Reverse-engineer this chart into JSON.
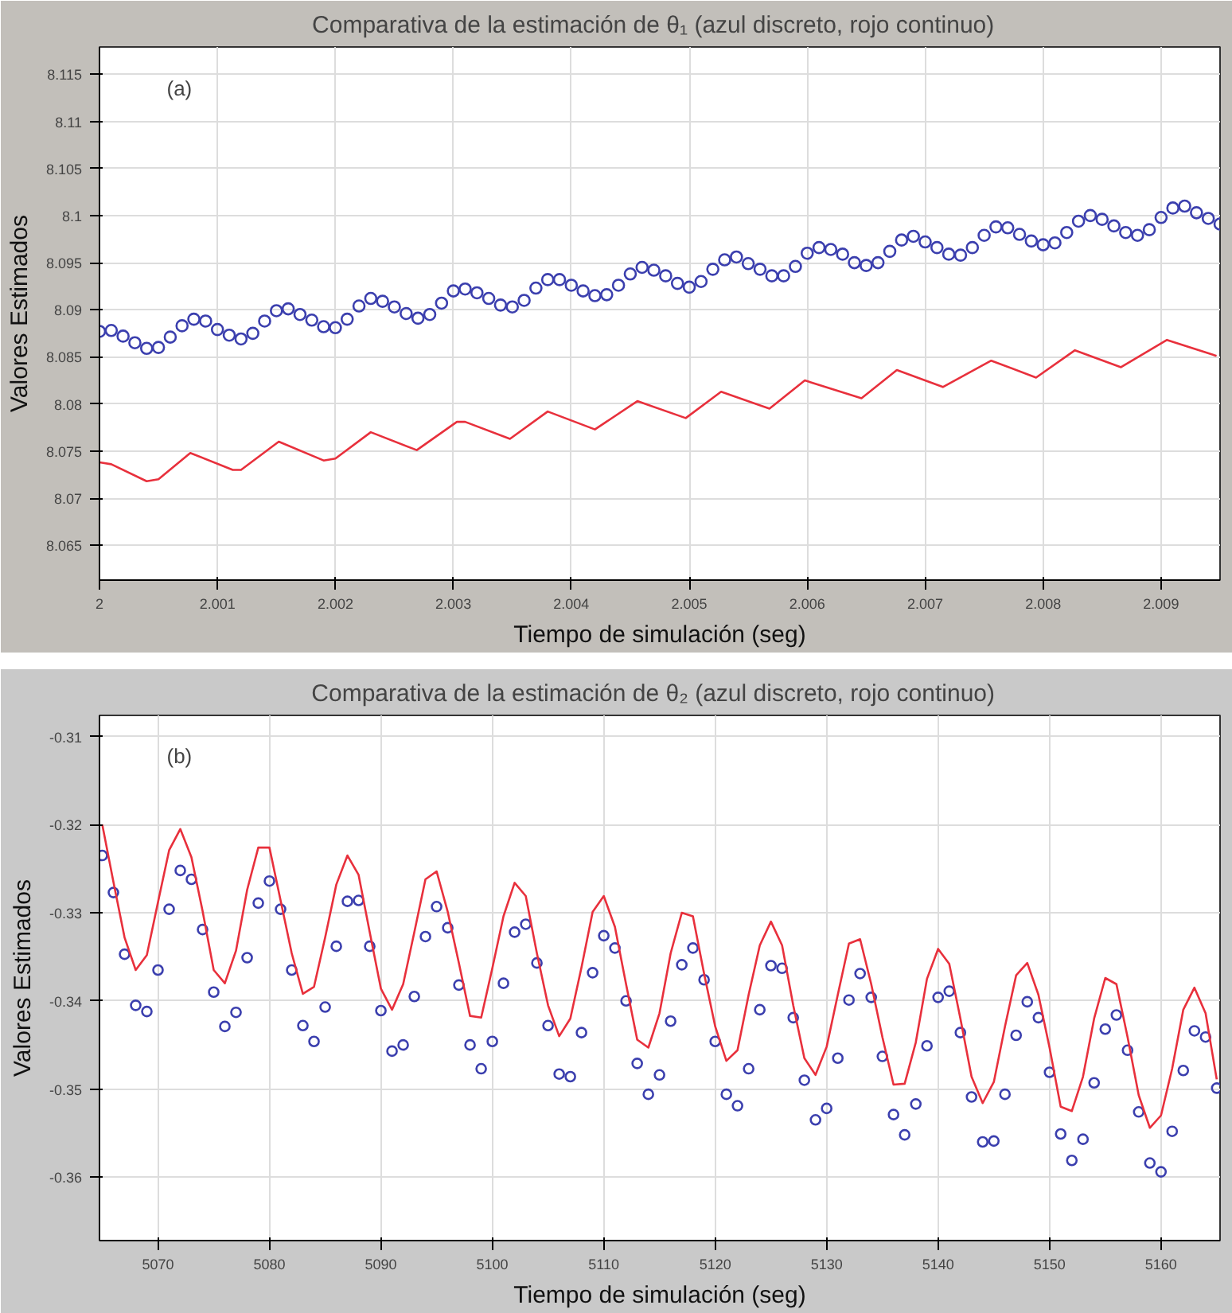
{
  "chart_data": [
    {
      "type": "scatter",
      "title": "Comparativa  de la estimación de  θ₁ (azul discreto, rojo continuo)",
      "xlabel": "Tiempo de simulación (seg)",
      "ylabel": "Valores Estimados",
      "annotations": [
        "(a)"
      ],
      "xlim": [
        2,
        2.0095
      ],
      "ylim": [
        8.0613,
        8.1179
      ],
      "xticks": [
        2,
        2.001,
        2.002,
        2.003,
        2.004,
        2.005,
        2.006,
        2.007,
        2.008,
        2.009
      ],
      "yticks": [
        8.065,
        8.07,
        8.075,
        8.08,
        8.085,
        8.09,
        8.095,
        8.1,
        8.105,
        8.11,
        8.115
      ],
      "grid": true,
      "series": [
        {
          "marker": "circle",
          "color": "#3b3fae",
          "x": [
            2.0,
            2.0001,
            2.0002,
            2.0003,
            2.0004,
            2.0005,
            2.0006,
            2.0007,
            2.0008,
            2.0009,
            2.001,
            2.0011,
            2.0012,
            2.0013,
            2.0014,
            2.0015,
            2.0016,
            2.0017,
            2.0018,
            2.0019,
            2.002,
            2.0021,
            2.0022,
            2.0023,
            2.0024,
            2.0025,
            2.0026,
            2.0027,
            2.0028,
            2.0029,
            2.003,
            2.0031,
            2.0032,
            2.0033,
            2.0034,
            2.0035,
            2.0036,
            2.0037,
            2.0038,
            2.0039,
            2.004,
            2.0041,
            2.0042,
            2.0043,
            2.0044,
            2.0045,
            2.0046,
            2.0047,
            2.0048,
            2.0049,
            2.005,
            2.0051,
            2.0052,
            2.0053,
            2.0054,
            2.0055,
            2.0056,
            2.0057,
            2.0058,
            2.0059,
            2.006,
            2.0061,
            2.0062,
            2.0063,
            2.0064,
            2.0065,
            2.0066,
            2.0067,
            2.0068,
            2.0069,
            2.007,
            2.0071,
            2.0072,
            2.0073,
            2.0074,
            2.0075,
            2.0076,
            2.0077,
            2.0078,
            2.0079,
            2.008,
            2.0081,
            2.0082,
            2.0083,
            2.0084,
            2.0085,
            2.0086,
            2.0087,
            2.0088,
            2.0089,
            2.009,
            2.0091,
            2.0092,
            2.0093,
            2.0094,
            2.0095
          ],
          "values": [
            8.0877,
            8.0878,
            8.0872,
            8.0865,
            8.0859,
            8.086,
            8.0871,
            8.0883,
            8.089,
            8.0888,
            8.0879,
            8.0873,
            8.0869,
            8.0875,
            8.0888,
            8.0899,
            8.0901,
            8.0895,
            8.0889,
            8.0882,
            8.0881,
            8.089,
            8.0904,
            8.0912,
            8.0909,
            8.0903,
            8.0896,
            8.0891,
            8.0895,
            8.0907,
            8.092,
            8.0922,
            8.0918,
            8.0912,
            8.0905,
            8.0903,
            8.091,
            8.0923,
            8.0932,
            8.0932,
            8.0926,
            8.092,
            8.0915,
            8.0916,
            8.0926,
            8.0938,
            8.0945,
            8.0942,
            8.0936,
            8.0928,
            8.0924,
            8.093,
            8.0943,
            8.0953,
            8.0956,
            8.0949,
            8.0943,
            8.0936,
            8.0936,
            8.0946,
            8.096,
            8.0966,
            8.0964,
            8.0959,
            8.095,
            8.0947,
            8.095,
            8.0962,
            8.0974,
            8.0978,
            8.0972,
            8.0966,
            8.0959,
            8.0958,
            8.0966,
            8.0979,
            8.0988,
            8.0987,
            8.098,
            8.0973,
            8.0969,
            8.0971,
            8.0982,
            8.0994,
            8.1,
            8.0996,
            8.0989,
            8.0982,
            8.0979,
            8.0985,
            8.0998,
            8.1008,
            8.101,
            8.1003,
            8.0997,
            8.0991
          ]
        },
        {
          "type": "line",
          "color": "#e8303c",
          "x": [
            2.0,
            2.0001,
            2.0004,
            2.0005,
            2.00077,
            2.00113,
            2.0012,
            2.00152,
            2.0019,
            2.002,
            2.0023,
            2.00269,
            2.00303,
            2.0031,
            2.00348,
            2.0038,
            2.0042,
            2.00456,
            2.00497,
            2.00527,
            2.00568,
            2.00598,
            2.00646,
            2.00676,
            2.00715,
            2.00756,
            2.00794,
            2.00827,
            2.00866,
            2.00905,
            2.00947
          ],
          "values": [
            8.0738,
            8.0736,
            8.0718,
            8.072,
            8.0748,
            8.073,
            8.073,
            8.076,
            8.074,
            8.0742,
            8.077,
            8.0751,
            8.0781,
            8.0781,
            8.0763,
            8.0792,
            8.0773,
            8.0803,
            8.0785,
            8.0813,
            8.0795,
            8.0825,
            8.0806,
            8.0836,
            8.0818,
            8.0846,
            8.0828,
            8.0857,
            8.0839,
            8.0868,
            8.0851
          ]
        }
      ]
    },
    {
      "type": "scatter",
      "title": "Comparativa  de la estimación de  θ₂ (azul discreto, rojo continuo)",
      "xlabel": "Tiempo de simulación (seg)",
      "ylabel": "Valores Estimados",
      "annotations": [
        "(b)"
      ],
      "xlim": [
        5064.75,
        5165.3
      ],
      "ylim": [
        -0.3672,
        -0.3076
      ],
      "xticks": [
        5070,
        5080,
        5090,
        5100,
        5110,
        5120,
        5130,
        5140,
        5150,
        5160
      ],
      "yticks": [
        -0.36,
        -0.35,
        -0.34,
        -0.33,
        -0.32,
        -0.31
      ],
      "grid": true,
      "series": [
        {
          "marker": "circle",
          "color": "#3b3fae",
          "x": [
            5065,
            5066,
            5067,
            5068,
            5069,
            5070,
            5071,
            5072,
            5073,
            5074,
            5075,
            5076,
            5077,
            5078,
            5079,
            5080,
            5081,
            5082,
            5083,
            5084,
            5085,
            5086,
            5087,
            5088,
            5089,
            5090,
            5091,
            5092,
            5093,
            5094,
            5095,
            5096,
            5097,
            5098,
            5099,
            5100,
            5101,
            5102,
            5103,
            5104,
            5105,
            5106,
            5107,
            5108,
            5109,
            5110,
            5111,
            5112,
            5113,
            5114,
            5115,
            5116,
            5117,
            5118,
            5119,
            5120,
            5121,
            5122,
            5123,
            5124,
            5125,
            5126,
            5127,
            5128,
            5129,
            5130,
            5131,
            5132,
            5133,
            5134,
            5135,
            5136,
            5137,
            5138,
            5139,
            5140,
            5141,
            5142,
            5143,
            5144,
            5145,
            5146,
            5147,
            5148,
            5149,
            5150,
            5151,
            5152,
            5153,
            5154,
            5155,
            5156,
            5157,
            5158,
            5159,
            5160,
            5161,
            5162,
            5163,
            5164,
            5165
          ],
          "values": [
            -0.3235,
            -0.3277,
            -0.3347,
            -0.3405,
            -0.3412,
            -0.3365,
            -0.3296,
            -0.3252,
            -0.3262,
            -0.3319,
            -0.339,
            -0.3429,
            -0.3413,
            -0.3351,
            -0.3289,
            -0.3264,
            -0.3296,
            -0.3365,
            -0.3428,
            -0.3446,
            -0.3407,
            -0.3338,
            -0.3287,
            -0.3286,
            -0.3338,
            -0.3411,
            -0.3457,
            -0.345,
            -0.3395,
            -0.3327,
            -0.3293,
            -0.3317,
            -0.3382,
            -0.345,
            -0.3477,
            -0.3446,
            -0.338,
            -0.3322,
            -0.3313,
            -0.3357,
            -0.3428,
            -0.3483,
            -0.3486,
            -0.3436,
            -0.3368,
            -0.3326,
            -0.334,
            -0.34,
            -0.3471,
            -0.3506,
            -0.3484,
            -0.3423,
            -0.3359,
            -0.334,
            -0.3376,
            -0.3446,
            -0.3506,
            -0.3519,
            -0.3477,
            -0.341,
            -0.336,
            -0.3363,
            -0.3419,
            -0.349,
            -0.3535,
            -0.3522,
            -0.3465,
            -0.3399,
            -0.3369,
            -0.3396,
            -0.3463,
            -0.3529,
            -0.3552,
            -0.3517,
            -0.3451,
            -0.3396,
            -0.3389,
            -0.3436,
            -0.3509,
            -0.356,
            -0.3559,
            -0.3506,
            -0.3439,
            -0.3401,
            -0.3419,
            -0.3481,
            -0.3551,
            -0.3581,
            -0.3557,
            -0.3493,
            -0.3432,
            -0.3416,
            -0.3456,
            -0.3526,
            -0.3584,
            -0.3594,
            -0.3548,
            -0.3479,
            -0.3434,
            -0.3441,
            -0.3499
          ]
        },
        {
          "type": "line",
          "color": "#e8303c",
          "x": [
            5065,
            5066,
            5067,
            5068,
            5069,
            5070,
            5071,
            5072,
            5073,
            5074,
            5075,
            5076,
            5077,
            5078,
            5079,
            5080,
            5081,
            5082,
            5083,
            5084,
            5085,
            5086,
            5087,
            5088,
            5089,
            5090,
            5091,
            5092,
            5093,
            5094,
            5095,
            5096,
            5097,
            5098,
            5099,
            5100,
            5101,
            5102,
            5103,
            5104,
            5105,
            5106,
            5107,
            5108,
            5109,
            5110,
            5111,
            5112,
            5113,
            5114,
            5115,
            5116,
            5117,
            5118,
            5119,
            5120,
            5121,
            5122,
            5123,
            5124,
            5125,
            5126,
            5127,
            5128,
            5129,
            5130,
            5131,
            5132,
            5133,
            5134,
            5135,
            5136,
            5137,
            5138,
            5139,
            5140,
            5141,
            5142,
            5143,
            5144,
            5145,
            5146,
            5147,
            5148,
            5149,
            5150,
            5151,
            5152,
            5153,
            5154,
            5155,
            5156,
            5157,
            5158,
            5159,
            5160,
            5161,
            5162,
            5163,
            5164,
            5165
          ],
          "values": [
            -0.32,
            -0.3265,
            -0.3328,
            -0.3365,
            -0.3348,
            -0.3288,
            -0.3229,
            -0.3205,
            -0.3237,
            -0.3298,
            -0.3365,
            -0.338,
            -0.3343,
            -0.3274,
            -0.3226,
            -0.3226,
            -0.3286,
            -0.3346,
            -0.3392,
            -0.3384,
            -0.3328,
            -0.3268,
            -0.3235,
            -0.3257,
            -0.3322,
            -0.3386,
            -0.341,
            -0.3381,
            -0.3322,
            -0.3262,
            -0.3253,
            -0.3299,
            -0.3357,
            -0.3417,
            -0.3419,
            -0.3363,
            -0.3304,
            -0.3266,
            -0.3281,
            -0.3346,
            -0.3405,
            -0.344,
            -0.342,
            -0.3362,
            -0.3299,
            -0.3281,
            -0.3316,
            -0.3381,
            -0.3444,
            -0.3453,
            -0.3414,
            -0.3346,
            -0.33,
            -0.3304,
            -0.3369,
            -0.3429,
            -0.3468,
            -0.3456,
            -0.3393,
            -0.3337,
            -0.331,
            -0.3337,
            -0.3405,
            -0.3465,
            -0.3484,
            -0.3452,
            -0.3393,
            -0.3335,
            -0.333,
            -0.3381,
            -0.3441,
            -0.3495,
            -0.3494,
            -0.3447,
            -0.3375,
            -0.3341,
            -0.3358,
            -0.342,
            -0.3486,
            -0.3516,
            -0.3492,
            -0.3429,
            -0.3371,
            -0.3357,
            -0.3393,
            -0.3453,
            -0.352,
            -0.3525,
            -0.3486,
            -0.342,
            -0.3374,
            -0.3381,
            -0.3441,
            -0.3507,
            -0.3544,
            -0.353,
            -0.3477,
            -0.341,
            -0.3385,
            -0.3414,
            -0.3489
          ]
        }
      ]
    }
  ]
}
